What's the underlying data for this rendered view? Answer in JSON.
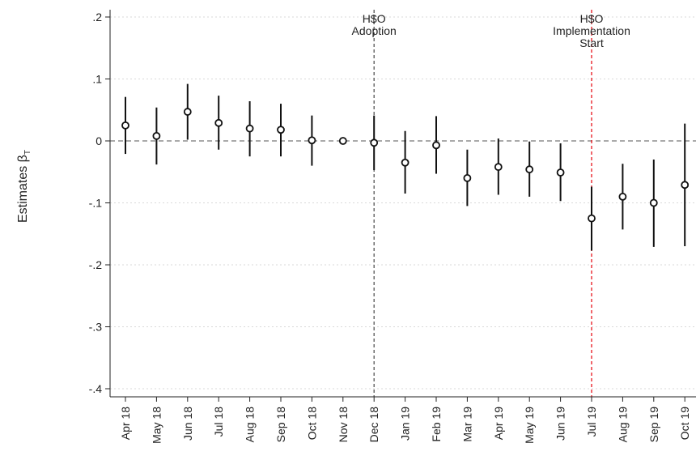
{
  "chart_data": {
    "type": "scatter",
    "title": "",
    "xlabel": "",
    "ylabel": "Estimates β",
    "ylabel_subscript": "T",
    "categories": [
      "Apr 18",
      "May 18",
      "Jun 18",
      "Jul 18",
      "Aug 18",
      "Sep 18",
      "Oct 18",
      "Nov 18",
      "Dec 18",
      "Jan 19",
      "Feb 19",
      "Mar 19",
      "Apr 19",
      "May 19",
      "Jun 19",
      "Jul 19",
      "Aug 19",
      "Sep 19",
      "Oct 19"
    ],
    "series": [
      {
        "estimate": [
          0.025,
          0.008,
          0.047,
          0.029,
          0.02,
          0.018,
          0.001,
          0.0,
          -0.003,
          -0.035,
          -0.007,
          -0.06,
          -0.042,
          -0.046,
          -0.051,
          -0.125,
          -0.09,
          -0.1,
          -0.071
        ],
        "ci_low": [
          -0.021,
          -0.038,
          0.002,
          -0.014,
          -0.025,
          -0.025,
          -0.04,
          null,
          -0.047,
          -0.085,
          -0.053,
          -0.105,
          -0.087,
          -0.09,
          -0.097,
          -0.177,
          -0.143,
          -0.171,
          -0.17
        ],
        "ci_high": [
          0.071,
          0.054,
          0.092,
          0.073,
          0.064,
          0.06,
          0.041,
          null,
          0.041,
          0.016,
          0.04,
          -0.014,
          0.004,
          -0.001,
          -0.004,
          -0.074,
          -0.037,
          -0.03,
          0.028
        ]
      }
    ],
    "yticks": [
      0.2,
      0.1,
      0,
      -0.1,
      -0.2,
      -0.3,
      -0.4
    ],
    "ytick_labels": [
      ".2",
      ".1",
      "0",
      "-.1",
      "-.2",
      "-.3",
      "-.4"
    ],
    "ylim": [
      -0.41,
      0.21
    ],
    "grid": true,
    "reference_line_y": 0,
    "vertical_lines": [
      {
        "category": "Dec 18",
        "color": "#555555",
        "label_lines": [
          "H$O",
          "Adoption"
        ]
      },
      {
        "category": "Jul 19",
        "color": "#e8131b",
        "label_lines": [
          "H$O",
          "Implementation",
          "Start"
        ]
      }
    ]
  }
}
